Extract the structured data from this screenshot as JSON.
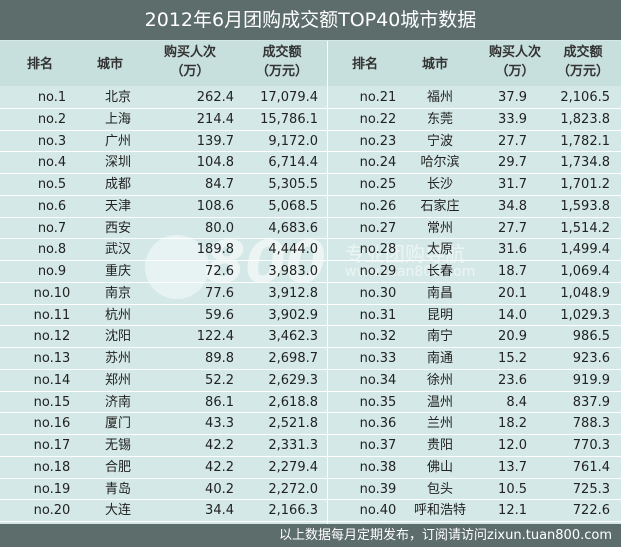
{
  "title": "2012年6月团购成交额TOP40城市数据",
  "columns": [
    [
      "排名"
    ],
    [
      "城市"
    ],
    [
      "购买人次",
      "（万）"
    ],
    [
      "成交额",
      "（万元）"
    ],
    [
      "排名"
    ],
    [
      "城市"
    ],
    [
      "购买人次",
      "（万）"
    ],
    [
      "成交额",
      "（万元）"
    ]
  ],
  "rows": [
    [
      "no.1",
      "北京",
      "262.4",
      "17,079.4",
      "no.21",
      "福州",
      "37.9",
      "2,106.5"
    ],
    [
      "no.2",
      "上海",
      "214.4",
      "15,786.1",
      "no.22",
      "东莞",
      "33.9",
      "1,823.8"
    ],
    [
      "no.3",
      "广州",
      "139.7",
      "9,172.0",
      "no.23",
      "宁波",
      "27.7",
      "1,782.1"
    ],
    [
      "no.4",
      "深圳",
      "104.8",
      "6,714.4",
      "no.24",
      "哈尔滨",
      "29.7",
      "1,734.8"
    ],
    [
      "no.5",
      "成都",
      "84.7",
      "5,305.5",
      "no.25",
      "长沙",
      "31.7",
      "1,701.2"
    ],
    [
      "no.6",
      "天津",
      "108.6",
      "5,068.5",
      "no.26",
      "石家庄",
      "34.8",
      "1,593.8"
    ],
    [
      "no.7",
      "西安",
      "80.0",
      "4,683.6",
      "no.27",
      "常州",
      "27.7",
      "1,514.2"
    ],
    [
      "no.8",
      "武汉",
      "189.8",
      "4,444.0",
      "no.28",
      "太原",
      "31.6",
      "1,499.4"
    ],
    [
      "no.9",
      "重庆",
      "72.6",
      "3,983.0",
      "no.29",
      "长春",
      "18.7",
      "1,069.4"
    ],
    [
      "no.10",
      "南京",
      "77.6",
      "3,912.8",
      "no.30",
      "南昌",
      "20.1",
      "1,048.9"
    ],
    [
      "no.11",
      "杭州",
      "59.6",
      "3,902.9",
      "no.31",
      "昆明",
      "14.0",
      "1,029.3"
    ],
    [
      "no.12",
      "沈阳",
      "122.4",
      "3,462.3",
      "no.32",
      "南宁",
      "20.9",
      "986.5"
    ],
    [
      "no.13",
      "苏州",
      "89.8",
      "2,698.7",
      "no.33",
      "南通",
      "15.2",
      "923.6"
    ],
    [
      "no.14",
      "郑州",
      "52.2",
      "2,629.3",
      "no.34",
      "徐州",
      "23.6",
      "919.9"
    ],
    [
      "no.15",
      "济南",
      "86.1",
      "2,618.8",
      "no.35",
      "温州",
      "8.4",
      "837.9"
    ],
    [
      "no.16",
      "厦门",
      "43.3",
      "2,521.8",
      "no.36",
      "兰州",
      "18.2",
      "788.3"
    ],
    [
      "no.17",
      "无锡",
      "42.2",
      "2,331.3",
      "no.37",
      "贵阳",
      "12.0",
      "770.3"
    ],
    [
      "no.18",
      "合肥",
      "42.2",
      "2,279.4",
      "no.38",
      "佛山",
      "13.7",
      "761.4"
    ],
    [
      "no.19",
      "青岛",
      "40.2",
      "2,272.0",
      "no.39",
      "包头",
      "10.5",
      "725.3"
    ],
    [
      "no.20",
      "大连",
      "34.4",
      "2,166.3",
      "no.40",
      "呼和浩特",
      "12.1",
      "722.6"
    ]
  ],
  "footer": "以上数据每月定期发布，订阅请访问zixun.tuan800.com",
  "watermark": {
    "logo": "800",
    "slogan": "专业团购导航",
    "url": "www.tuan800.com"
  }
}
